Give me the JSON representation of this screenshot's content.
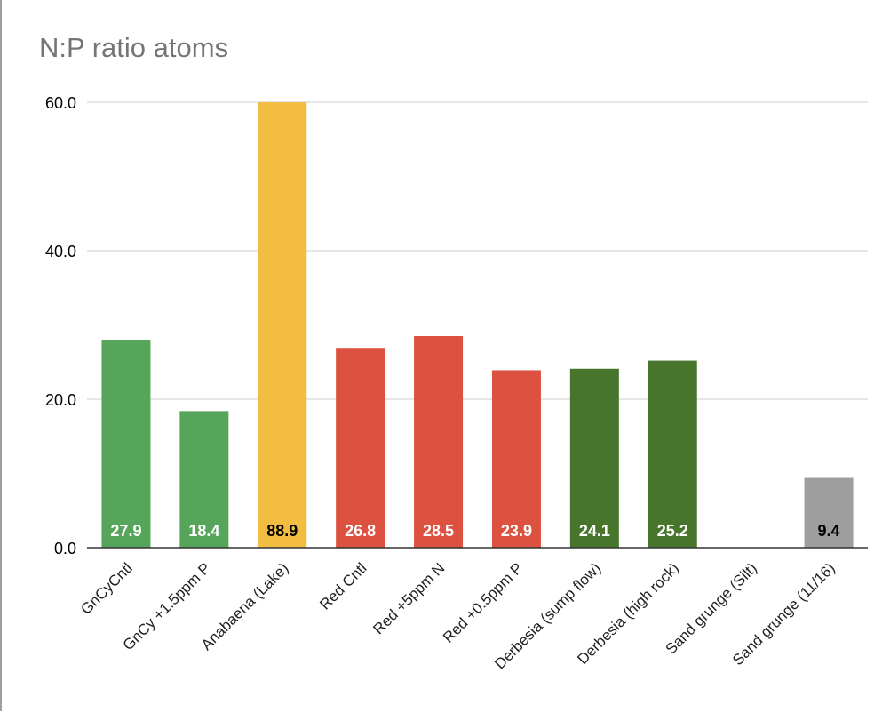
{
  "chart_data": {
    "type": "bar",
    "title": "N:P ratio atoms",
    "xlabel": "",
    "ylabel": "",
    "ylim": [
      0,
      60
    ],
    "yticks": [
      "0.0",
      "20.0",
      "40.0",
      "60.0"
    ],
    "grid": true,
    "categories": [
      "GnCyCntl",
      "GnCy +1.5ppm P",
      "Anabaena (Lake)",
      "Red Cntl",
      "Red  +5ppm N",
      "Red +0.5ppm P",
      "Derbesia (sump flow)",
      "Derbesia (high rock)",
      "Sand grunge (Silt)",
      "Sand grunge (11/16)"
    ],
    "values": [
      27.9,
      18.4,
      88.9,
      26.8,
      28.5,
      23.9,
      24.1,
      25.2,
      null,
      9.4
    ],
    "data_labels": [
      "27.9",
      "18.4",
      "88.9",
      "26.8",
      "28.5",
      "23.9",
      "24.1",
      "25.2",
      "",
      "9.4"
    ],
    "bar_colors": [
      "#57a55b",
      "#57a55b",
      "#f2bd40",
      "#dc5140",
      "#dc5140",
      "#dc5140",
      "#48752c",
      "#48752c",
      "#9e9e9e",
      "#9e9e9e"
    ],
    "label_colors": [
      "#ffffff",
      "#ffffff",
      "#000000",
      "#ffffff",
      "#ffffff",
      "#ffffff",
      "#ffffff",
      "#ffffff",
      "#000000",
      "#000000"
    ]
  }
}
